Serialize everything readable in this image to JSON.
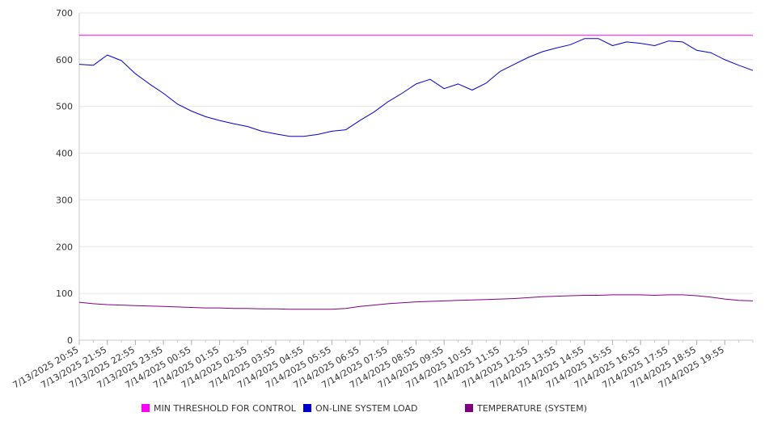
{
  "chart_data": {
    "type": "line",
    "title": "",
    "xlabel": "",
    "ylabel": "",
    "ylim": [
      0,
      700
    ],
    "yticks": [
      0,
      100,
      200,
      300,
      400,
      500,
      600,
      700
    ],
    "grid": "horizontal",
    "legend_position": "bottom",
    "x_tick_labels": [
      "7/13/2025 20:55",
      "7/13/2025 21:55",
      "7/13/2025 22:55",
      "7/13/2025 23:55",
      "7/14/2025 00:55",
      "7/14/2025 01:55",
      "7/14/2025 02:55",
      "7/14/2025 03:55",
      "7/14/2025 04:55",
      "7/14/2025 05:55",
      "7/14/2025 06:55",
      "7/14/2025 07:55",
      "7/14/2025 08:55",
      "7/14/2025 09:55",
      "7/14/2025 10:55",
      "7/14/2025 11:55",
      "7/14/2025 12:55",
      "7/14/2025 13:55",
      "7/14/2025 14:55",
      "7/14/2025 15:55",
      "7/14/2025 16:55",
      "7/14/2025 17:55",
      "7/14/2025 18:55",
      "7/14/2025 19:55"
    ],
    "x": [
      "7/13/2025 20:55",
      "7/13/2025 21:25",
      "7/13/2025 21:55",
      "7/13/2025 22:25",
      "7/13/2025 22:55",
      "7/13/2025 23:25",
      "7/13/2025 23:55",
      "7/14/2025 00:25",
      "7/14/2025 00:55",
      "7/14/2025 01:25",
      "7/14/2025 01:55",
      "7/14/2025 02:25",
      "7/14/2025 02:55",
      "7/14/2025 03:25",
      "7/14/2025 03:55",
      "7/14/2025 04:25",
      "7/14/2025 04:55",
      "7/14/2025 05:25",
      "7/14/2025 05:55",
      "7/14/2025 06:25",
      "7/14/2025 06:55",
      "7/14/2025 07:25",
      "7/14/2025 07:55",
      "7/14/2025 08:25",
      "7/14/2025 08:55",
      "7/14/2025 09:25",
      "7/14/2025 09:55",
      "7/14/2025 10:25",
      "7/14/2025 10:55",
      "7/14/2025 11:25",
      "7/14/2025 11:55",
      "7/14/2025 12:25",
      "7/14/2025 12:55",
      "7/14/2025 13:25",
      "7/14/2025 13:55",
      "7/14/2025 14:25",
      "7/14/2025 14:55",
      "7/14/2025 15:25",
      "7/14/2025 15:55",
      "7/14/2025 16:25",
      "7/14/2025 16:55",
      "7/14/2025 17:25",
      "7/14/2025 17:55",
      "7/14/2025 18:25",
      "7/14/2025 18:55",
      "7/14/2025 19:25",
      "7/14/2025 19:55",
      "7/14/2025 20:25",
      "7/14/2025 20:55"
    ],
    "series": [
      {
        "name": "MIN THRESHOLD FOR CONTROL",
        "color": "#ff00ff",
        "values": [
          652,
          652,
          652,
          652,
          652,
          652,
          652,
          652,
          652,
          652,
          652,
          652,
          652,
          652,
          652,
          652,
          652,
          652,
          652,
          652,
          652,
          652,
          652,
          652,
          652,
          652,
          652,
          652,
          652,
          652,
          652,
          652,
          652,
          652,
          652,
          652,
          652,
          652,
          652,
          652,
          652,
          652,
          652,
          652,
          652,
          652,
          652,
          652,
          652
        ]
      },
      {
        "name": "ON-LINE SYSTEM LOAD",
        "color": "#0000cc",
        "values": [
          590,
          588,
          610,
          598,
          570,
          548,
          528,
          505,
          490,
          478,
          470,
          463,
          457,
          447,
          441,
          436,
          436,
          440,
          447,
          450,
          470,
          488,
          510,
          528,
          548,
          558,
          538,
          548,
          535,
          550,
          575,
          590,
          605,
          617,
          625,
          632,
          645,
          645,
          630,
          638,
          635,
          630,
          640,
          638,
          620,
          615,
          600,
          588,
          577
        ]
      },
      {
        "name": "TEMPERATURE (SYSTEM)",
        "color": "#800080",
        "values": [
          81,
          78,
          76,
          75,
          74,
          73,
          72,
          71,
          70,
          69,
          69,
          68,
          68,
          67,
          67,
          66,
          66,
          66,
          66,
          68,
          72,
          75,
          78,
          80,
          82,
          83,
          84,
          85,
          86,
          87,
          88,
          89,
          91,
          93,
          94,
          95,
          96,
          96,
          97,
          97,
          97,
          96,
          97,
          97,
          95,
          92,
          88,
          85,
          84
        ]
      }
    ]
  }
}
